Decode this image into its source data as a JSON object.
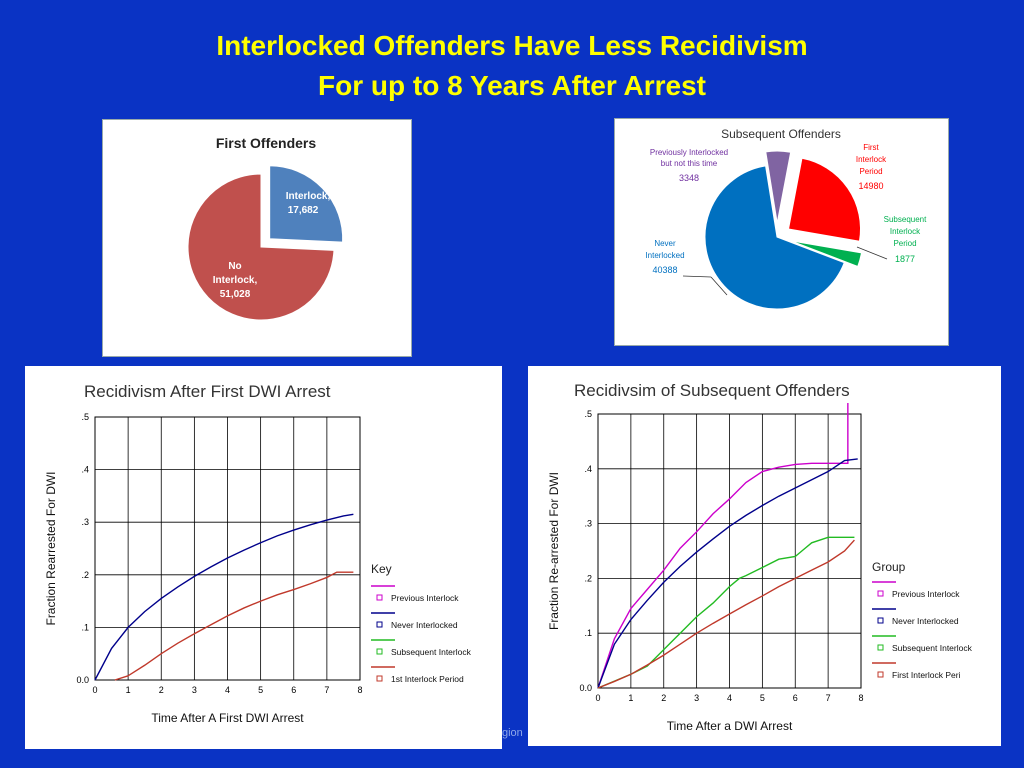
{
  "page": {
    "title_line1": "Interlocked Offenders Have Less Recidivism",
    "title_line2": "For up to 8 Years After Arrest",
    "footer_fragment": "gion"
  },
  "chart_data": [
    {
      "type": "pie",
      "title": "First Offenders",
      "labels": [
        "Interlock,",
        "No Interlock,"
      ],
      "label_values": [
        "17,682",
        "51,028"
      ],
      "values": [
        17682,
        51028
      ],
      "colors": [
        "#4f81bd",
        "#c0504d"
      ],
      "exploded": [
        true,
        false
      ]
    },
    {
      "type": "pie",
      "title": "Subsequent Offenders",
      "labels": [
        "Previously Interlocked but not this time",
        "First Interlock Period",
        "Subsequent Interlock Period",
        "Never Interlocked"
      ],
      "label_values": [
        "3348",
        "14980",
        "1877",
        "40388"
      ],
      "values": [
        3348,
        14980,
        1877,
        40388
      ],
      "colors": [
        "#8064a2",
        "#ff0000",
        "#00b050",
        "#0070c0"
      ],
      "label_colors": [
        "#7030a0",
        "#ff0000",
        "#00b050",
        "#0070c0"
      ],
      "exploded": [
        true,
        true,
        true,
        false
      ]
    },
    {
      "type": "line",
      "title": "Recidivism After First DWI Arrest",
      "xlabel": "Time After A First DWI Arrest",
      "ylabel": "Fraction Rearrested For DWI",
      "xlim": [
        0,
        8
      ],
      "ylim": [
        0,
        0.5
      ],
      "xticks": [
        "0",
        "1",
        "2",
        "3",
        "4",
        "5",
        "6",
        "7",
        "8"
      ],
      "yticks": [
        "0.0",
        ".1",
        ".2",
        ".3",
        ".4",
        ".5"
      ],
      "grid": true,
      "legend_title": "Key",
      "legend_position": "right",
      "legend": [
        "Previous Interlock",
        "Never Interlocked",
        "Subsequent Interlock",
        "1st Interlock Period"
      ],
      "legend_colors": [
        "#cc00cc",
        "#00008b",
        "#22bb22",
        "#c0392b"
      ],
      "series": [
        {
          "name": "Never Interlocked",
          "color": "#00008b",
          "x": [
            0,
            0.5,
            1,
            1.5,
            2,
            2.5,
            3,
            3.5,
            4,
            4.5,
            5,
            5.5,
            6,
            6.5,
            7,
            7.5,
            7.8
          ],
          "y": [
            0,
            0.06,
            0.1,
            0.13,
            0.155,
            0.177,
            0.197,
            0.215,
            0.232,
            0.247,
            0.261,
            0.274,
            0.285,
            0.295,
            0.304,
            0.312,
            0.315
          ]
        },
        {
          "name": "1st Interlock Period",
          "color": "#c0392b",
          "x": [
            0.6,
            1,
            1.5,
            2,
            2.5,
            3,
            3.5,
            4,
            4.5,
            5,
            5.5,
            6,
            6.5,
            7,
            7.3,
            7.8
          ],
          "y": [
            0,
            0.008,
            0.028,
            0.05,
            0.07,
            0.088,
            0.105,
            0.122,
            0.137,
            0.15,
            0.162,
            0.172,
            0.183,
            0.195,
            0.205,
            0.205
          ]
        }
      ]
    },
    {
      "type": "line",
      "title": "Recidivsim of Subsequent Offenders",
      "xlabel": "Time After a DWI Arrest",
      "ylabel": "Fraction Re-arrested For DWI",
      "xlim": [
        0,
        8
      ],
      "ylim": [
        0,
        0.5
      ],
      "xticks": [
        "0",
        "1",
        "2",
        "3",
        "4",
        "5",
        "6",
        "7",
        "8"
      ],
      "yticks": [
        "0.0",
        ".1",
        ".2",
        ".3",
        ".4",
        ".5"
      ],
      "grid": true,
      "legend_title": "Group",
      "legend_position": "right",
      "legend": [
        "Previous Interlock",
        "Never Interlocked",
        "Subsequent Interlock",
        "First Interlock Peri"
      ],
      "legend_colors": [
        "#cc00cc",
        "#00008b",
        "#22bb22",
        "#c0392b"
      ],
      "series": [
        {
          "name": "Previous Interlock",
          "color": "#cc00cc",
          "x": [
            0,
            0.5,
            1,
            1.5,
            2,
            2.5,
            3,
            3.5,
            4,
            4.5,
            5,
            5.5,
            6,
            6.5,
            7,
            7.5,
            7.6,
            7.6
          ],
          "y": [
            0,
            0.09,
            0.145,
            0.18,
            0.215,
            0.255,
            0.285,
            0.318,
            0.345,
            0.375,
            0.395,
            0.403,
            0.408,
            0.41,
            0.41,
            0.41,
            0.41,
            0.52
          ]
        },
        {
          "name": "Never Interlocked",
          "color": "#00008b",
          "x": [
            0,
            0.5,
            1,
            1.5,
            2,
            2.5,
            3,
            3.5,
            4,
            4.5,
            5,
            5.5,
            6,
            6.5,
            7,
            7.5,
            7.9
          ],
          "y": [
            0,
            0.08,
            0.125,
            0.16,
            0.193,
            0.222,
            0.248,
            0.272,
            0.295,
            0.315,
            0.333,
            0.35,
            0.365,
            0.38,
            0.395,
            0.415,
            0.418
          ]
        },
        {
          "name": "Subsequent Interlock",
          "color": "#22bb22",
          "x": [
            0,
            1,
            1.5,
            2,
            2.5,
            3,
            3.5,
            4,
            4.3,
            4.5,
            5,
            5.5,
            6,
            6.3,
            6.5,
            7,
            7.3,
            7.8
          ],
          "y": [
            0,
            0.025,
            0.04,
            0.07,
            0.1,
            0.13,
            0.155,
            0.185,
            0.2,
            0.205,
            0.22,
            0.235,
            0.24,
            0.255,
            0.265,
            0.275,
            0.275,
            0.275
          ]
        },
        {
          "name": "First Interlock Peri",
          "color": "#c0392b",
          "x": [
            0,
            0.5,
            1,
            1.5,
            2,
            2.5,
            3,
            3.5,
            4,
            4.5,
            5,
            5.5,
            6,
            6.5,
            7,
            7.5,
            7.8
          ],
          "y": [
            0,
            0.012,
            0.025,
            0.042,
            0.06,
            0.08,
            0.1,
            0.118,
            0.135,
            0.152,
            0.168,
            0.185,
            0.2,
            0.215,
            0.23,
            0.25,
            0.27
          ]
        }
      ]
    }
  ]
}
